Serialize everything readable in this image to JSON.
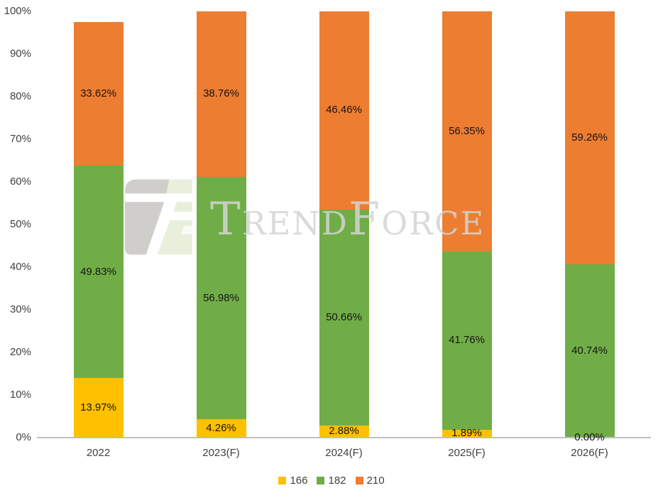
{
  "page": {
    "background": "#FFFFFF"
  },
  "watermark": {
    "brand_text": "TrendForce",
    "text_color": "#D3D3D3",
    "logo_colors": {
      "gray": "#CBCAC7",
      "light_green": "#E7EFDA",
      "white": "#FFFFFF"
    }
  },
  "chart_data": {
    "type": "bar",
    "variant": "stacked-column-100",
    "title": "",
    "xlabel": "",
    "ylabel": "",
    "categories": [
      "2022",
      "2023(F)",
      "2024(F)",
      "2025(F)",
      "2026(F)"
    ],
    "series": [
      {
        "name": "166",
        "color": "#FFC000",
        "values": [
          13.97,
          4.26,
          2.88,
          1.89,
          0.0
        ],
        "labels": [
          "13.97%",
          "4.26%",
          "2.88%",
          "1.89%",
          "0.00%"
        ]
      },
      {
        "name": "182",
        "color": "#70AD47",
        "values": [
          49.83,
          56.98,
          50.66,
          41.76,
          40.74
        ],
        "labels": [
          "49.83%",
          "56.98%",
          "50.66%",
          "41.76%",
          "40.74%"
        ]
      },
      {
        "name": "210",
        "color": "#ED7D31",
        "values": [
          33.62,
          38.76,
          46.46,
          56.35,
          59.26
        ],
        "labels": [
          "33.62%",
          "38.76%",
          "46.46%",
          "56.35%",
          "59.26%"
        ]
      }
    ],
    "ylim": [
      0,
      100
    ],
    "yticks": [
      {
        "label": "0%",
        "value": 0
      },
      {
        "label": "10%",
        "value": 10
      },
      {
        "label": "20%",
        "value": 20
      },
      {
        "label": "30%",
        "value": 30
      },
      {
        "label": "40%",
        "value": 40
      },
      {
        "label": "50%",
        "value": 50
      },
      {
        "label": "60%",
        "value": 60
      },
      {
        "label": "70%",
        "value": 70
      },
      {
        "label": "80%",
        "value": 80
      },
      {
        "label": "90%",
        "value": 90
      },
      {
        "label": "100%",
        "value": 100
      }
    ],
    "grid": false,
    "axis_line_color": "#BFBFBF",
    "legend": {
      "position": "bottom",
      "items": [
        "166",
        "182",
        "210"
      ]
    }
  }
}
